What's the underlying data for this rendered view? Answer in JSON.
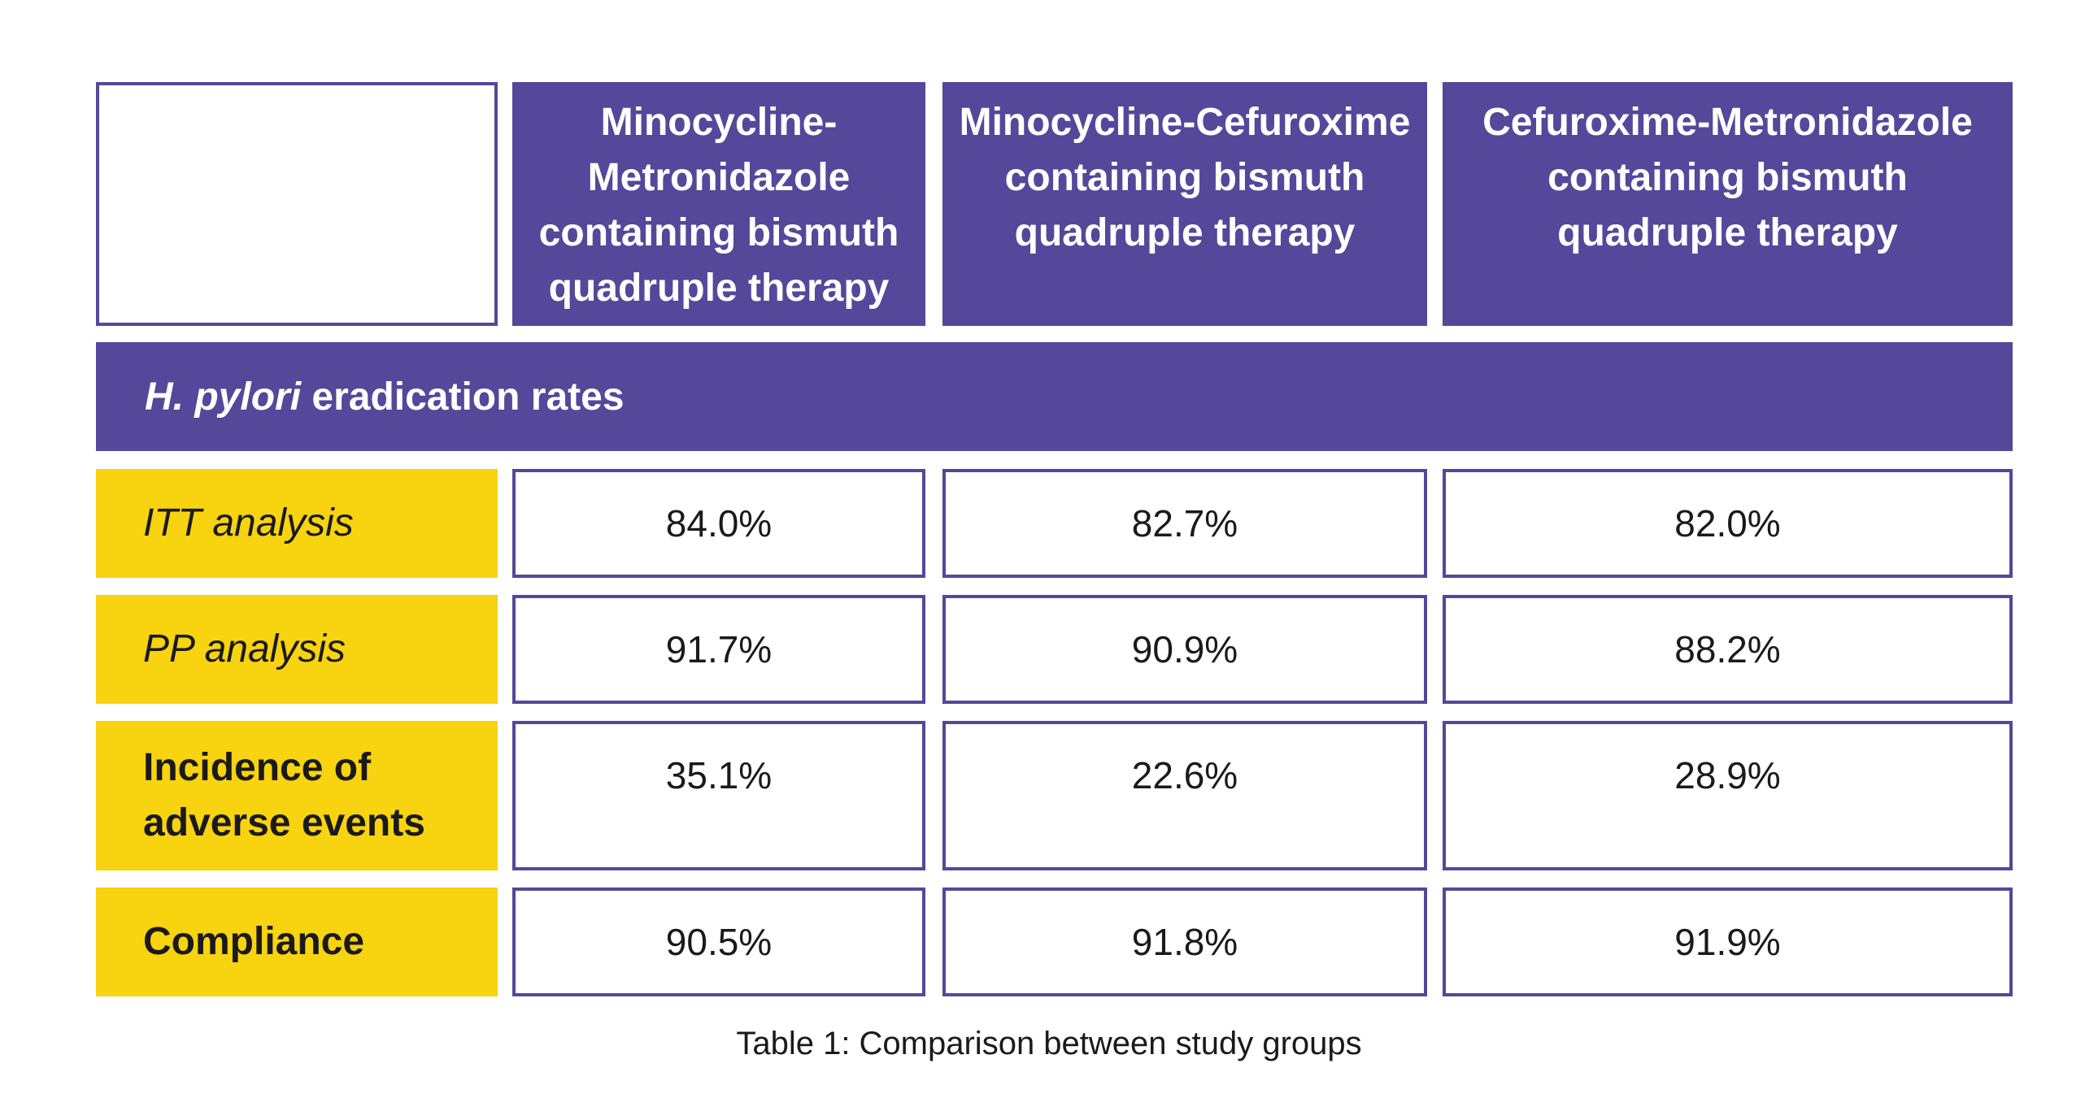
{
  "table": {
    "columns": [
      "Minocycline-Metronidazole containing bismuth quadruple therapy",
      "Minocycline-Cefuroxime containing bismuth quadruple therapy",
      "Cefuroxime-Metronidazole containing bismuth quadruple therapy"
    ],
    "section_header": {
      "italic_part": "H. pylori",
      "rest": " eradication rates"
    },
    "rows": [
      {
        "label": "ITT analysis",
        "values": [
          "84.0%",
          "82.7%",
          "82.0%"
        ]
      },
      {
        "label": "PP analysis",
        "values": [
          "91.7%",
          "90.9%",
          "88.2%"
        ]
      },
      {
        "label": "Incidence of adverse events",
        "values": [
          "35.1%",
          "22.6%",
          "28.9%"
        ]
      },
      {
        "label": "Compliance",
        "values": [
          "90.5%",
          "91.8%",
          "91.9%"
        ]
      }
    ]
  },
  "caption": "Table 1: Comparison between study groups",
  "colors": {
    "purple": "#55479a",
    "yellow": "#f8d30f"
  }
}
